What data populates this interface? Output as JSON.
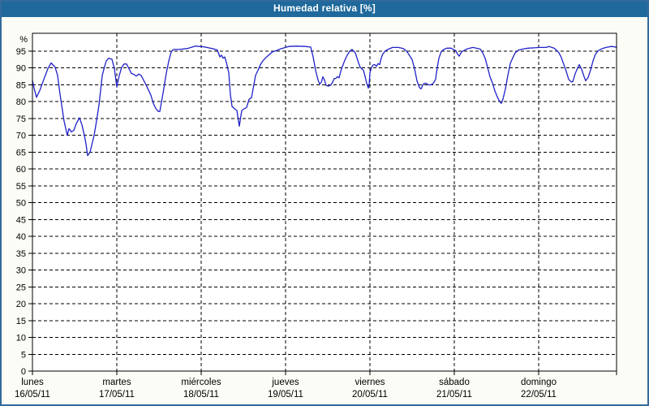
{
  "window": {
    "title": "Humedad relativa [%]"
  },
  "colors": {
    "titlebar_bg": "#1f699c",
    "titlebar_text": "#ffffff",
    "window_border": "#336a9c",
    "window_bg": "#fafcf5",
    "plot_bg": "#ffffff",
    "plot_border": "#000000",
    "grid": "#000000",
    "line": "#2121c8",
    "label_text": "#000000"
  },
  "chart_data": {
    "type": "line",
    "title": "Humedad relativa [%]",
    "ylabel": "%",
    "unit": "%",
    "ylim": [
      0,
      100.5
    ],
    "y_ticks": [
      0,
      5,
      10,
      15,
      20,
      25,
      30,
      35,
      40,
      45,
      50,
      55,
      60,
      65,
      70,
      75,
      80,
      85,
      90,
      95
    ],
    "grid": "dashed",
    "legend_position": "none",
    "x_axis": {
      "unit": "days",
      "range_days": [
        0,
        6.93
      ],
      "days": [
        {
          "name": "lunes",
          "date": "16/05/11"
        },
        {
          "name": "martes",
          "date": "17/05/11"
        },
        {
          "name": "miércoles",
          "date": "18/05/11"
        },
        {
          "name": "jueves",
          "date": "19/05/11"
        },
        {
          "name": "viernes",
          "date": "20/05/11"
        },
        {
          "name": "sábado",
          "date": "21/05/11"
        },
        {
          "name": "domingo",
          "date": "22/05/11"
        }
      ]
    },
    "series": [
      {
        "name": "Humedad relativa",
        "unit": "%",
        "points": [
          [
            0,
            86.3
          ],
          [
            0.019,
            84
          ],
          [
            0.048,
            81.3
          ],
          [
            0.087,
            83.3
          ],
          [
            0.135,
            86.6
          ],
          [
            0.183,
            89.8
          ],
          [
            0.221,
            91.5
          ],
          [
            0.269,
            90.2
          ],
          [
            0.298,
            87.8
          ],
          [
            0.327,
            82.2
          ],
          [
            0.346,
            79
          ],
          [
            0.375,
            74.2
          ],
          [
            0.413,
            70
          ],
          [
            0.433,
            72
          ],
          [
            0.462,
            71
          ],
          [
            0.49,
            71.5
          ],
          [
            0.519,
            73.5
          ],
          [
            0.558,
            75.2
          ],
          [
            0.587,
            73.1
          ],
          [
            0.615,
            70
          ],
          [
            0.635,
            67.5
          ],
          [
            0.654,
            64
          ],
          [
            0.683,
            65
          ],
          [
            0.712,
            68
          ],
          [
            0.731,
            70
          ],
          [
            0.76,
            74.3
          ],
          [
            0.788,
            79
          ],
          [
            0.808,
            83.3
          ],
          [
            0.827,
            87.8
          ],
          [
            0.856,
            90.5
          ],
          [
            0.875,
            92.1
          ],
          [
            0.904,
            92.9
          ],
          [
            0.942,
            92.6
          ],
          [
            0.971,
            89.8
          ],
          [
            1,
            84.4
          ],
          [
            1.029,
            87.8
          ],
          [
            1.058,
            90.2
          ],
          [
            1.087,
            91.2
          ],
          [
            1.115,
            91.2
          ],
          [
            1.144,
            89.8
          ],
          [
            1.173,
            88.4
          ],
          [
            1.202,
            88.1
          ],
          [
            1.231,
            87.6
          ],
          [
            1.26,
            88.2
          ],
          [
            1.288,
            87.8
          ],
          [
            1.317,
            86.4
          ],
          [
            1.346,
            85
          ],
          [
            1.375,
            83.5
          ],
          [
            1.404,
            81.9
          ],
          [
            1.433,
            79.5
          ],
          [
            1.462,
            78
          ],
          [
            1.49,
            77.1
          ],
          [
            1.51,
            77.1
          ],
          [
            1.529,
            79.8
          ],
          [
            1.558,
            84
          ],
          [
            1.587,
            88.5
          ],
          [
            1.615,
            92
          ],
          [
            1.644,
            94.8
          ],
          [
            1.673,
            95.5
          ],
          [
            1.74,
            95.5
          ],
          [
            1.837,
            95.8
          ],
          [
            1.933,
            96.5
          ],
          [
            2.029,
            96.3
          ],
          [
            2.144,
            95.7
          ],
          [
            2.192,
            95.3
          ],
          [
            2.221,
            93.3
          ],
          [
            2.24,
            93.8
          ],
          [
            2.26,
            92.9
          ],
          [
            2.279,
            93.3
          ],
          [
            2.298,
            91.7
          ],
          [
            2.327,
            88.6
          ],
          [
            2.346,
            82.1
          ],
          [
            2.365,
            78.6
          ],
          [
            2.394,
            77.9
          ],
          [
            2.423,
            77.4
          ],
          [
            2.452,
            72.7
          ],
          [
            2.481,
            77.4
          ],
          [
            2.51,
            77.9
          ],
          [
            2.538,
            78.3
          ],
          [
            2.567,
            80.7
          ],
          [
            2.596,
            81.2
          ],
          [
            2.615,
            83.8
          ],
          [
            2.644,
            87.8
          ],
          [
            2.673,
            89.3
          ],
          [
            2.702,
            91
          ],
          [
            2.731,
            92.1
          ],
          [
            2.76,
            92.9
          ],
          [
            2.798,
            93.8
          ],
          [
            2.846,
            94.8
          ],
          [
            2.894,
            95.2
          ],
          [
            2.942,
            95.7
          ],
          [
            3.038,
            96.4
          ],
          [
            3.135,
            96.5
          ],
          [
            3.231,
            96.4
          ],
          [
            3.298,
            96.2
          ],
          [
            3.327,
            93.3
          ],
          [
            3.356,
            89.3
          ],
          [
            3.385,
            86.5
          ],
          [
            3.404,
            85.2
          ],
          [
            3.423,
            85.7
          ],
          [
            3.442,
            87.4
          ],
          [
            3.462,
            86.4
          ],
          [
            3.481,
            84.8
          ],
          [
            3.51,
            84.6
          ],
          [
            3.538,
            85
          ],
          [
            3.558,
            85.8
          ],
          [
            3.577,
            86.9
          ],
          [
            3.596,
            86.9
          ],
          [
            3.615,
            87.4
          ],
          [
            3.635,
            87.1
          ],
          [
            3.654,
            89
          ],
          [
            3.673,
            90.4
          ],
          [
            3.702,
            92.3
          ],
          [
            3.731,
            93.8
          ],
          [
            3.76,
            95
          ],
          [
            3.788,
            95.5
          ],
          [
            3.808,
            95
          ],
          [
            3.827,
            94.5
          ],
          [
            3.846,
            93
          ],
          [
            3.865,
            91.5
          ],
          [
            3.885,
            90.2
          ],
          [
            3.904,
            89.8
          ],
          [
            3.923,
            89.3
          ],
          [
            3.942,
            87.5
          ],
          [
            3.962,
            85.5
          ],
          [
            3.981,
            84
          ],
          [
            3.99,
            85
          ],
          [
            4,
            88.6
          ],
          [
            4.019,
            90.2
          ],
          [
            4.038,
            90.9
          ],
          [
            4.058,
            91
          ],
          [
            4.077,
            90.5
          ],
          [
            4.096,
            91.3
          ],
          [
            4.115,
            91
          ],
          [
            4.135,
            93
          ],
          [
            4.154,
            94.2
          ],
          [
            4.183,
            95.1
          ],
          [
            4.221,
            95.6
          ],
          [
            4.269,
            96.1
          ],
          [
            4.337,
            96.1
          ],
          [
            4.394,
            95.8
          ],
          [
            4.433,
            95.1
          ],
          [
            4.462,
            94
          ],
          [
            4.5,
            92.5
          ],
          [
            4.529,
            89.8
          ],
          [
            4.558,
            86.2
          ],
          [
            4.587,
            84.2
          ],
          [
            4.606,
            83.8
          ],
          [
            4.635,
            85.3
          ],
          [
            4.663,
            85.5
          ],
          [
            4.692,
            85
          ],
          [
            4.721,
            85
          ],
          [
            4.75,
            85.4
          ],
          [
            4.779,
            86.6
          ],
          [
            4.788,
            88.6
          ],
          [
            4.817,
            92.9
          ],
          [
            4.846,
            94.9
          ],
          [
            4.875,
            95.5
          ],
          [
            4.913,
            95.9
          ],
          [
            4.962,
            95.9
          ],
          [
            4.99,
            95.5
          ],
          [
            5.019,
            95.1
          ],
          [
            5.038,
            94.1
          ],
          [
            5.058,
            93.5
          ],
          [
            5.087,
            94.8
          ],
          [
            5.115,
            95.2
          ],
          [
            5.154,
            95.7
          ],
          [
            5.221,
            96.1
          ],
          [
            5.279,
            95.8
          ],
          [
            5.308,
            95.6
          ],
          [
            5.337,
            94.5
          ],
          [
            5.365,
            92.9
          ],
          [
            5.394,
            90.2
          ],
          [
            5.423,
            87.4
          ],
          [
            5.452,
            85.6
          ],
          [
            5.481,
            83.2
          ],
          [
            5.51,
            81.4
          ],
          [
            5.538,
            80
          ],
          [
            5.558,
            79.5
          ],
          [
            5.577,
            80.8
          ],
          [
            5.606,
            83.8
          ],
          [
            5.635,
            87.8
          ],
          [
            5.663,
            91.3
          ],
          [
            5.692,
            93
          ],
          [
            5.721,
            94.5
          ],
          [
            5.76,
            95.3
          ],
          [
            5.808,
            95.6
          ],
          [
            5.875,
            95.9
          ],
          [
            5.942,
            96
          ],
          [
            6.019,
            96.1
          ],
          [
            6.087,
            96.1
          ],
          [
            6.125,
            96.4
          ],
          [
            6.154,
            96.1
          ],
          [
            6.183,
            95.9
          ],
          [
            6.212,
            95.3
          ],
          [
            6.24,
            94.5
          ],
          [
            6.269,
            93.1
          ],
          [
            6.298,
            91
          ],
          [
            6.327,
            89
          ],
          [
            6.356,
            86.6
          ],
          [
            6.385,
            85.9
          ],
          [
            6.404,
            85.9
          ],
          [
            6.433,
            88.3
          ],
          [
            6.462,
            90
          ],
          [
            6.481,
            91
          ],
          [
            6.51,
            89.6
          ],
          [
            6.538,
            87.4
          ],
          [
            6.558,
            86.2
          ],
          [
            6.587,
            87.2
          ],
          [
            6.615,
            89.4
          ],
          [
            6.644,
            92.1
          ],
          [
            6.673,
            94.1
          ],
          [
            6.702,
            95
          ],
          [
            6.731,
            95.5
          ],
          [
            6.769,
            95.9
          ],
          [
            6.817,
            96.2
          ],
          [
            6.865,
            96.4
          ],
          [
            6.913,
            96.2
          ],
          [
            6.933,
            96.1
          ]
        ]
      }
    ]
  }
}
